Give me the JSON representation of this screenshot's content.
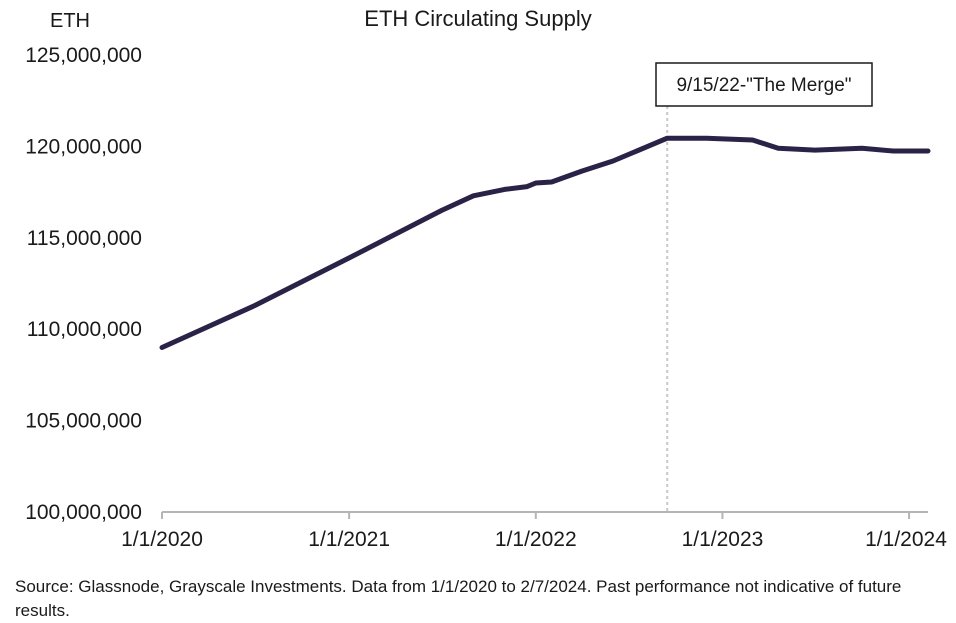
{
  "chart_data": {
    "type": "line",
    "title": "ETH Circulating Supply",
    "ylabel": "ETH",
    "xlabel": "",
    "ylim": [
      100000000,
      125000000
    ],
    "y_ticks": [
      100000000,
      105000000,
      110000000,
      115000000,
      120000000,
      125000000
    ],
    "y_tick_labels": [
      "100,000,000",
      "105,000,000",
      "110,000,000",
      "115,000,000",
      "120,000,000",
      "125,000,000"
    ],
    "x_range": [
      "2020-01-01",
      "2024-02-07"
    ],
    "x_ticks": [
      "2020-01-01",
      "2021-01-01",
      "2022-01-01",
      "2023-01-01",
      "2024-01-01"
    ],
    "x_tick_labels": [
      "1/1/2020",
      "1/1/2021",
      "1/1/2022",
      "1/1/2023",
      "1/1/2024"
    ],
    "grid": false,
    "line_color": "#2b2347",
    "series": [
      {
        "name": "",
        "points": [
          [
            "2020-01-01",
            109000000
          ],
          [
            "2020-07-01",
            111300000
          ],
          [
            "2021-01-01",
            113900000
          ],
          [
            "2021-07-01",
            116500000
          ],
          [
            "2021-09-01",
            117300000
          ],
          [
            "2021-11-01",
            117650000
          ],
          [
            "2021-12-15",
            117800000
          ],
          [
            "2022-01-01",
            118000000
          ],
          [
            "2022-02-01",
            118050000
          ],
          [
            "2022-04-01",
            118650000
          ],
          [
            "2022-06-01",
            119200000
          ],
          [
            "2022-09-15",
            120450000
          ],
          [
            "2022-12-01",
            120450000
          ],
          [
            "2023-03-01",
            120350000
          ],
          [
            "2023-04-20",
            119900000
          ],
          [
            "2023-07-01",
            119800000
          ],
          [
            "2023-10-01",
            119900000
          ],
          [
            "2023-12-01",
            119750000
          ],
          [
            "2024-02-07",
            119750000
          ]
        ]
      }
    ],
    "annotations": [
      {
        "text": "9/15/22-\"The Merge\"",
        "x": "2022-09-15",
        "style": "dashed-vertical-line"
      }
    ]
  },
  "source_note": "Source: Glassnode, Grayscale Investments. Data from 1/1/2020 to 2/7/2024. Past performance not indicative of future results."
}
